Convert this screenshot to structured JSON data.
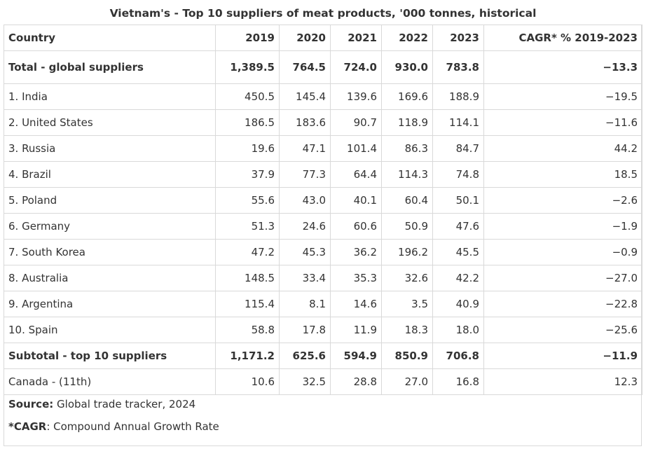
{
  "title": "Vietnam's - Top 10 suppliers of meat products, '000 tonnes, historical",
  "columns": [
    "Country",
    "2019",
    "2020",
    "2021",
    "2022",
    "2023",
    "CAGR* % 2019-2023"
  ],
  "rows": [
    {
      "country": "Total - global suppliers",
      "values": [
        "1,389.5",
        "764.5",
        "724.0",
        "930.0",
        "783.8",
        "−13.3"
      ],
      "bold": true
    },
    {
      "country": "1. India",
      "values": [
        "450.5",
        "145.4",
        "139.6",
        "169.6",
        "188.9",
        "−19.5"
      ]
    },
    {
      "country": "2. United States",
      "values": [
        "186.5",
        "183.6",
        "90.7",
        "118.9",
        "114.1",
        "−11.6"
      ]
    },
    {
      "country": "3. Russia",
      "values": [
        "19.6",
        "47.1",
        "101.4",
        "86.3",
        "84.7",
        "44.2"
      ]
    },
    {
      "country": "4. Brazil",
      "values": [
        "37.9",
        "77.3",
        "64.4",
        "114.3",
        "74.8",
        "18.5"
      ]
    },
    {
      "country": "5. Poland",
      "values": [
        "55.6",
        "43.0",
        "40.1",
        "60.4",
        "50.1",
        "−2.6"
      ]
    },
    {
      "country": "6. Germany",
      "values": [
        "51.3",
        "24.6",
        "60.6",
        "50.9",
        "47.6",
        "−1.9"
      ]
    },
    {
      "country": "7. South Korea",
      "values": [
        "47.2",
        "45.3",
        "36.2",
        "196.2",
        "45.5",
        "−0.9"
      ]
    },
    {
      "country": "8. Australia",
      "values": [
        "148.5",
        "33.4",
        "35.3",
        "32.6",
        "42.2",
        "−27.0"
      ]
    },
    {
      "country": "9. Argentina",
      "values": [
        "115.4",
        "8.1",
        "14.6",
        "3.5",
        "40.9",
        "−22.8"
      ]
    },
    {
      "country": "10. Spain",
      "values": [
        "58.8",
        "17.8",
        "11.9",
        "18.3",
        "18.0",
        "−25.6"
      ]
    },
    {
      "country": "Subtotal - top 10 suppliers",
      "values": [
        "1,171.2",
        "625.6",
        "594.9",
        "850.9",
        "706.8",
        "−11.9"
      ],
      "bold": true
    },
    {
      "country": "Canada - (11th)",
      "values": [
        "10.6",
        "32.5",
        "28.8",
        "27.0",
        "16.8",
        "12.3"
      ]
    }
  ],
  "notes": {
    "source_label": "Source:",
    "source_text": "Global trade tracker, 2024",
    "cagr_label": "*CAGR",
    "cagr_text": ": Compound Annual Growth Rate"
  }
}
